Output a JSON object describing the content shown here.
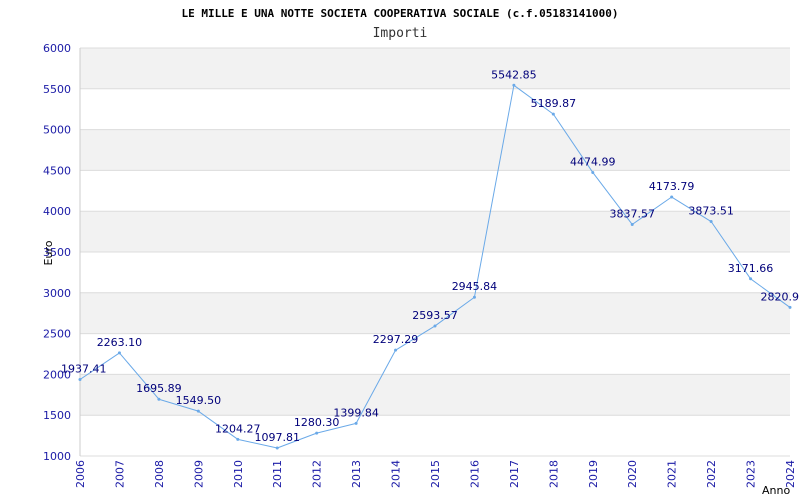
{
  "chart_data": {
    "type": "line",
    "title": "LE MILLE E UNA NOTTE SOCIETA COOPERATIVA SOCIALE (c.f.05183141000)",
    "subtitle": "Importi",
    "xlabel": "Anno",
    "ylabel": "Euro",
    "ylim": [
      1000,
      6000
    ],
    "y_ticks": [
      1000,
      1500,
      2000,
      2500,
      3000,
      3500,
      4000,
      4500,
      5000,
      5500,
      6000
    ],
    "x": [
      "2006",
      "2007",
      "2008",
      "2009",
      "2010",
      "2011",
      "2012",
      "2013",
      "2014",
      "2015",
      "2016",
      "2017",
      "2018",
      "2019",
      "2020",
      "2021",
      "2022",
      "2023",
      "2024"
    ],
    "series": [
      {
        "values": [
          1937.41,
          2263.1,
          1695.89,
          1549.5,
          1204.27,
          1097.81,
          1280.3,
          1399.84,
          2297.29,
          2593.57,
          2945.84,
          5542.85,
          5189.87,
          4474.99,
          3837.57,
          4173.79,
          3873.51,
          3171.66,
          2820.9
        ],
        "labels": [
          "1937.41",
          "2263.10",
          "1695.89",
          "1549.50",
          "1204.27",
          "1097.81",
          "1280.30",
          "1399.84",
          "2297.29",
          "2593.57",
          "2945.84",
          "5542.85",
          "5189.87",
          "4474.99",
          "3837.57",
          "4173.79",
          "3873.51",
          "3171.66",
          "2820.9"
        ]
      }
    ],
    "grid": true,
    "colors": {
      "line": "#6aa9e8",
      "band": "#f2f2f2",
      "grid": "#dcdcdc",
      "tick_text": "#1a1aa6",
      "label_text": "#00007a"
    }
  }
}
